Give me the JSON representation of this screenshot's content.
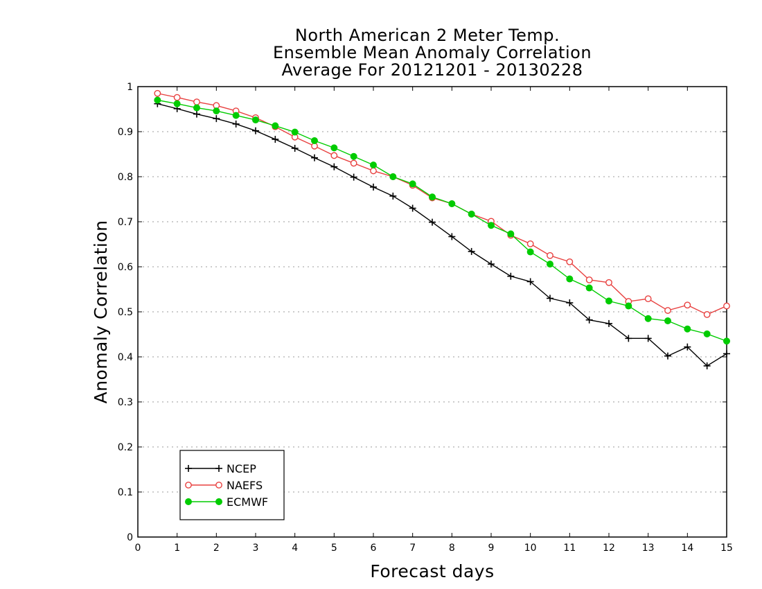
{
  "chart_data": {
    "type": "line",
    "title": [
      "North American 2 Meter Temp.",
      "Ensemble Mean Anomaly Correlation",
      "Average For 20121201 - 20130228"
    ],
    "xlabel": "Forecast days",
    "ylabel": "Anomaly Correlation",
    "xlim": [
      0,
      15
    ],
    "ylim": [
      0,
      1
    ],
    "x_ticks": [
      "0",
      "1",
      "2",
      "3",
      "4",
      "5",
      "6",
      "7",
      "8",
      "9",
      "10",
      "11",
      "12",
      "13",
      "14",
      "15"
    ],
    "y_ticks": [
      "0",
      "0.1",
      "0.2",
      "0.3",
      "0.4",
      "0.5",
      "0.6",
      "0.7",
      "0.8",
      "0.9",
      "1"
    ],
    "grid": "horizontal-dotted",
    "legend_position": "bottom-left",
    "x": [
      0.5,
      1,
      1.5,
      2,
      2.5,
      3,
      3.5,
      4,
      4.5,
      5,
      5.5,
      6,
      6.5,
      7,
      7.5,
      8,
      8.5,
      9,
      9.5,
      10,
      10.5,
      11,
      11.5,
      12,
      12.5,
      13,
      13.5,
      14,
      14.5,
      15
    ],
    "series": [
      {
        "name": "NCEP",
        "color": "#000000",
        "marker": "plus",
        "values": [
          0.962,
          0.951,
          0.939,
          0.929,
          0.917,
          0.902,
          0.883,
          0.863,
          0.842,
          0.822,
          0.799,
          0.777,
          0.757,
          0.73,
          0.699,
          0.667,
          0.634,
          0.606,
          0.579,
          0.567,
          0.53,
          0.52,
          0.482,
          0.474,
          0.441,
          0.441,
          0.402,
          0.422,
          0.38,
          0.407
        ]
      },
      {
        "name": "NAEFS",
        "color": "#e8403f",
        "marker": "open-circle",
        "values": [
          0.985,
          0.976,
          0.966,
          0.958,
          0.946,
          0.931,
          0.911,
          0.888,
          0.868,
          0.847,
          0.83,
          0.813,
          0.8,
          0.781,
          0.753,
          0.74,
          0.717,
          0.701,
          0.67,
          0.651,
          0.625,
          0.611,
          0.571,
          0.565,
          0.523,
          0.529,
          0.503,
          0.515,
          0.494,
          0.513
        ]
      },
      {
        "name": "ECMWF",
        "color": "#00cc00",
        "marker": "filled-circle",
        "values": [
          0.97,
          0.962,
          0.953,
          0.946,
          0.936,
          0.926,
          0.913,
          0.899,
          0.88,
          0.864,
          0.845,
          0.826,
          0.8,
          0.784,
          0.755,
          0.74,
          0.717,
          0.692,
          0.673,
          0.633,
          0.606,
          0.573,
          0.553,
          0.524,
          0.513,
          0.485,
          0.48,
          0.462,
          0.451,
          0.435
        ]
      }
    ]
  }
}
